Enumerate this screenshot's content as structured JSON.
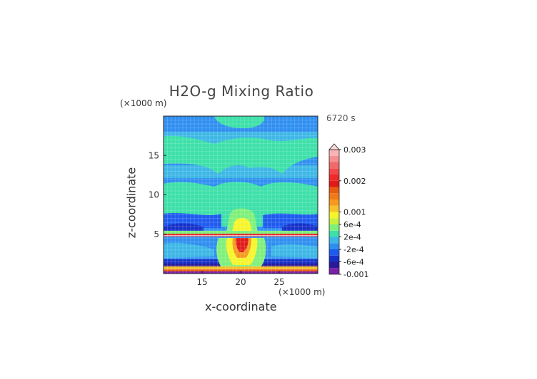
{
  "chart_data": {
    "type": "heatmap",
    "title": "H2O-g Mixing Ratio",
    "xlabel": "x-coordinate",
    "ylabel": "z-coordinate",
    "x_unit": "(×1000 m)",
    "y_unit": "(×1000 m)",
    "time": "6720 s",
    "xlim": [
      10,
      30
    ],
    "ylim": [
      0,
      20
    ],
    "x_ticks": [
      "15",
      "20",
      "25"
    ],
    "x_tick_values": [
      15,
      20,
      25
    ],
    "y_ticks": [
      "5",
      "10",
      "15"
    ],
    "y_tick_values": [
      5,
      10,
      15
    ],
    "colorbar": {
      "labels": [
        "0.003",
        "0.002",
        "0.001",
        "6e-4",
        "2e-4",
        "-2e-4",
        "-6e-4",
        "-0.001"
      ],
      "label_values": [
        0.003,
        0.002,
        0.001,
        0.0006,
        0.0002,
        -0.0002,
        -0.0006,
        -0.001
      ],
      "levels": [
        -0.001,
        -0.0008,
        -0.0006,
        -0.0004,
        -0.0002,
        0,
        0.0002,
        0.0004,
        0.0006,
        0.0008,
        0.001,
        0.0012,
        0.0014,
        0.0016,
        0.0018,
        0.002,
        0.0022,
        0.0024,
        0.0026,
        0.0028,
        0.003
      ],
      "colors": [
        "#7b1fa8",
        "#2a1a9a",
        "#1530c8",
        "#1e5aef",
        "#2e8ef0",
        "#3cb6e6",
        "#3ce0a8",
        "#7ef07a",
        "#c8f03c",
        "#f5f52a",
        "#f5c22a",
        "#f59a1e",
        "#f07a18",
        "#e85c12",
        "#e01a1a",
        "#f02828",
        "#f04848",
        "#f06a6a",
        "#f49090",
        "#f8b4b4"
      ],
      "extend_max": true
    }
  }
}
